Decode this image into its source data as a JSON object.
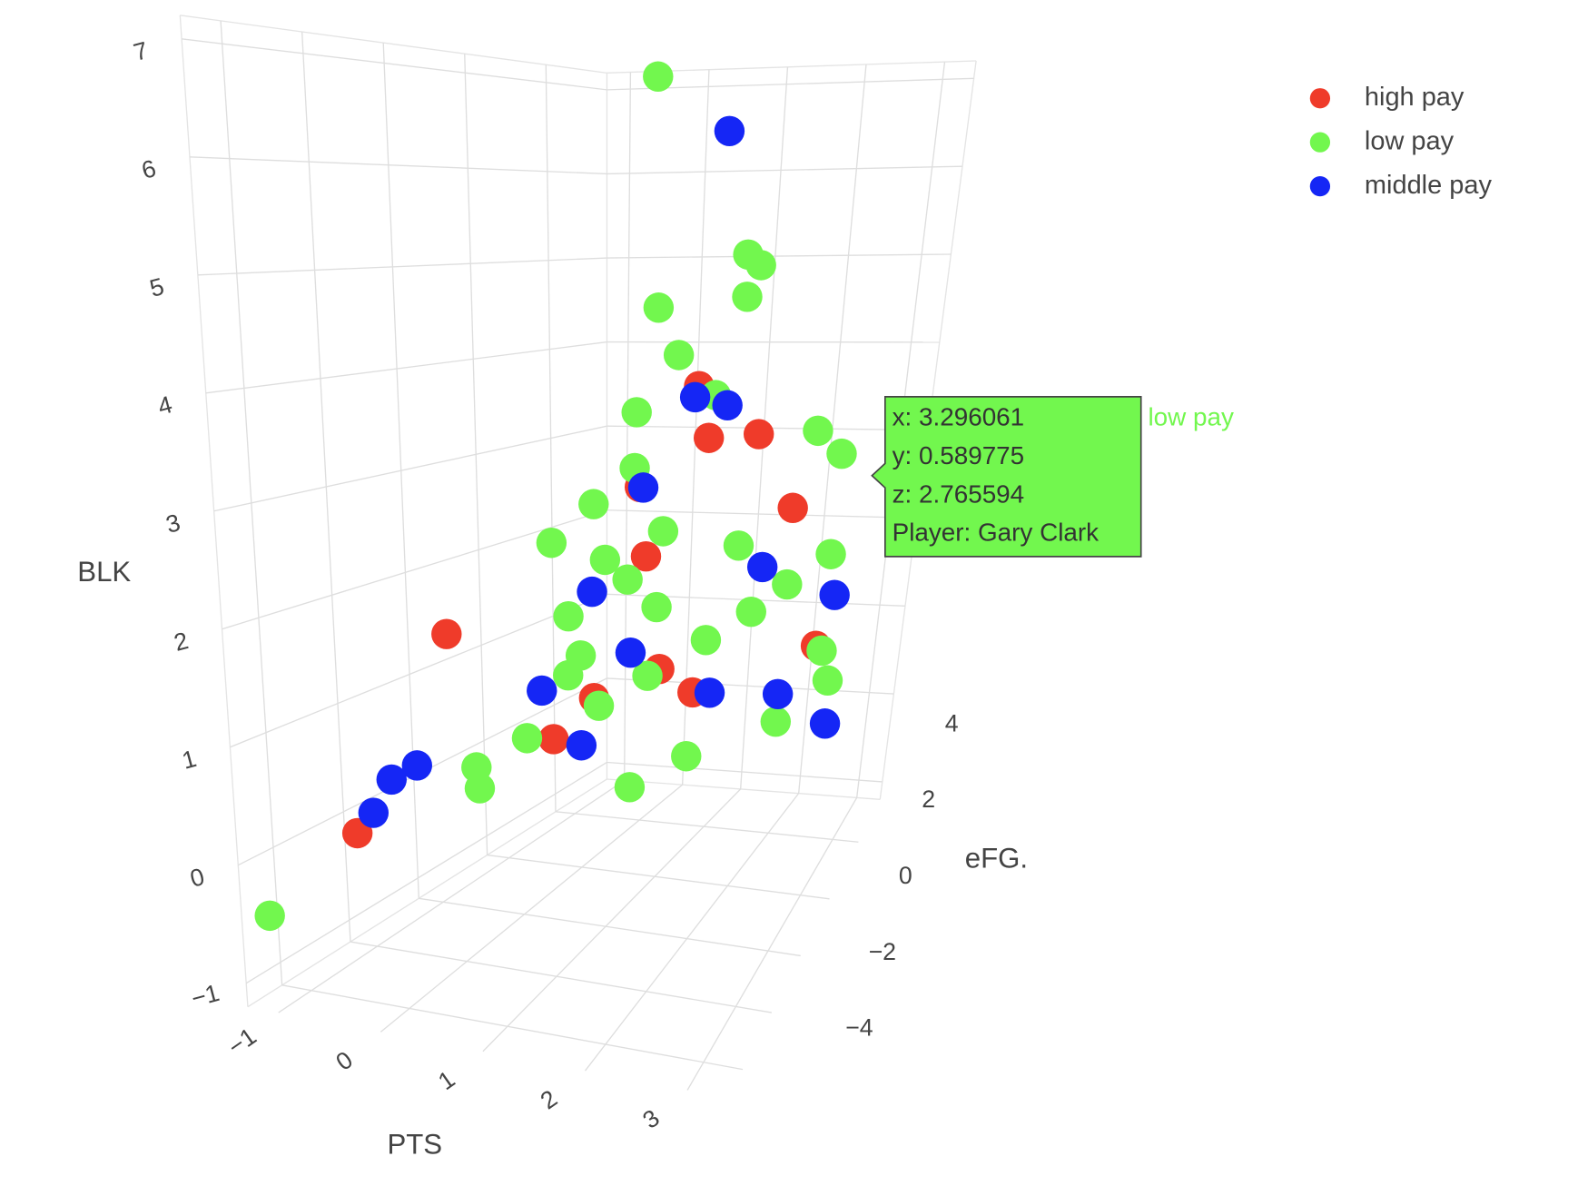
{
  "chart_data": {
    "type": "scatter3d",
    "x_label": "PTS",
    "y_label": "eFG.",
    "z_label": "BLK",
    "xlim": [
      -1.3,
      3.4
    ],
    "ylim": [
      -5,
      5.5
    ],
    "zlim": [
      -1.2,
      7.2
    ],
    "xticks": [
      {
        "value": -1,
        "label": "−1"
      },
      0,
      1,
      2,
      3
    ],
    "yticks": [
      {
        "value": -4,
        "label": "−4"
      },
      {
        "value": -2,
        "label": "−2"
      },
      0,
      2,
      4
    ],
    "zticks": [
      {
        "value": -1,
        "label": "−1"
      },
      0,
      1,
      2,
      3,
      4,
      5,
      6,
      7
    ],
    "grid": true,
    "legend": "top-right",
    "series": [
      {
        "name": "high pay",
        "color": "#ef3b2a",
        "x": [
          1.3,
          1.5,
          1.9,
          0.9,
          1.2,
          2.5,
          -0.5,
          3.2,
          -0.8,
          0.8,
          1.4,
          0.5,
          1.8
        ],
        "y": [
          2,
          1.8,
          2.5,
          1.2,
          0.5,
          2,
          -1,
          0.5,
          -3,
          0,
          0.5,
          -0.5,
          0.5
        ],
        "z": [
          3.5,
          3.0,
          3.0,
          2.6,
          2.0,
          2.3,
          1.5,
          1.2,
          0.0,
          0.8,
          1.0,
          0.5,
          0.8
        ]
      },
      {
        "name": "low pay",
        "color": "#72f74e",
        "x": [
          -0.2,
          1.5,
          1.6,
          0.8,
          1.8,
          1.2,
          0.9,
          1.5,
          3.296061,
          2.5,
          0.3,
          0.6,
          0.8,
          1.0,
          1.2,
          0.5,
          1.0,
          1.4,
          1.8,
          2.2,
          2.5,
          2.8,
          3.0,
          0.2,
          -0.2,
          0.0,
          1.5,
          2.0,
          -1.2,
          0.7,
          1.1,
          1.3,
          2.0,
          0.4,
          2.7,
          3.2
        ],
        "y": [
          4.5,
          3,
          3.2,
          2,
          2,
          1.5,
          1,
          2,
          0.589775,
          3,
          0,
          0.5,
          0.3,
          0.5,
          1,
          0,
          -0.5,
          0,
          1,
          1.5,
          2,
          3,
          2,
          -0.5,
          -1,
          -1.5,
          -1,
          -0.5,
          -4.5,
          -0.2,
          0.3,
          0.8,
          1.5,
          0.3,
          1,
          1.5
        ],
        "z": [
          7.0,
          4.8,
          4.7,
          4.3,
          4.3,
          3.8,
          3.3,
          3.4,
          2.765594,
          3.0,
          2.2,
          2.5,
          2.0,
          1.8,
          1.5,
          1.0,
          0.8,
          1.0,
          1.2,
          1.4,
          1.6,
          1.8,
          1.0,
          0.5,
          0.3,
          0.2,
          0.2,
          0.4,
          -0.5,
          1.2,
          2.8,
          2.2,
          2.0,
          1.5,
          0.5,
          0.8
        ]
      },
      {
        "name": "middle pay",
        "color": "#1526f5",
        "x": [
          0.5,
          1.2,
          1.5,
          1.0,
          0.6,
          1.2,
          -0.6,
          -0.4,
          -0.8,
          2.3,
          3.1,
          3.3,
          2.0,
          0.9,
          2.8,
          0.3
        ],
        "y": [
          5,
          2.2,
          2.5,
          1,
          0.5,
          0,
          -2.5,
          -2.3,
          -2.5,
          1.5,
          2,
          1,
          0.5,
          -0.8,
          0.5,
          -0.3
        ],
        "z": [
          6.4,
          3.4,
          3.3,
          2.6,
          1.7,
          1.2,
          0.4,
          0.5,
          0.1,
          1.8,
          1.5,
          0.5,
          0.8,
          0.5,
          0.8,
          0.9
        ]
      }
    ],
    "hover": {
      "lines": [
        "x: 3.296061",
        "y: 0.589775",
        "z: 2.765594",
        "Player: Gary Clark"
      ],
      "name": "low pay"
    }
  }
}
